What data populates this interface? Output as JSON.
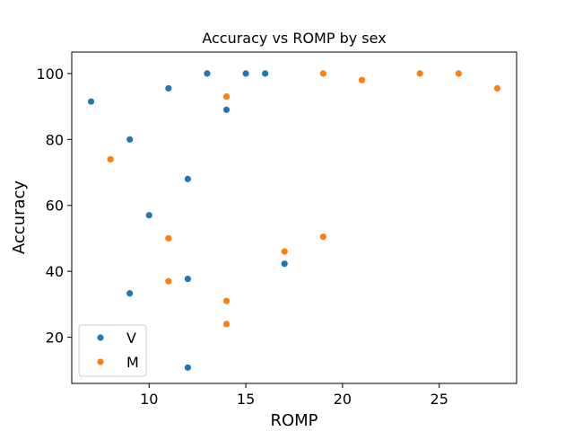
{
  "chart_data": {
    "type": "scatter",
    "title": "Accuracy vs ROMP by sex",
    "xlabel": "ROMP",
    "ylabel": "Accuracy",
    "xlim": [
      6.0,
      29.0
    ],
    "ylim": [
      6.0,
      106.5
    ],
    "xticks": [
      10,
      15,
      20,
      25
    ],
    "yticks": [
      20,
      40,
      60,
      80,
      100
    ],
    "grid": false,
    "legend_position": "lower-left",
    "series": [
      {
        "name": "V",
        "color": "#1f77b4",
        "points": [
          {
            "x": 7,
            "y": 91.5
          },
          {
            "x": 9,
            "y": 80
          },
          {
            "x": 9,
            "y": 33.3
          },
          {
            "x": 10,
            "y": 57
          },
          {
            "x": 11,
            "y": 95.5
          },
          {
            "x": 12,
            "y": 68
          },
          {
            "x": 12,
            "y": 37.7
          },
          {
            "x": 12,
            "y": 10.8
          },
          {
            "x": 13,
            "y": 100
          },
          {
            "x": 14,
            "y": 89
          },
          {
            "x": 15,
            "y": 100
          },
          {
            "x": 16,
            "y": 100
          },
          {
            "x": 17,
            "y": 42.3
          }
        ]
      },
      {
        "name": "M",
        "color": "#ff7f0e",
        "points": [
          {
            "x": 8,
            "y": 74
          },
          {
            "x": 11,
            "y": 50
          },
          {
            "x": 11,
            "y": 37
          },
          {
            "x": 14,
            "y": 93
          },
          {
            "x": 14,
            "y": 31
          },
          {
            "x": 14,
            "y": 24
          },
          {
            "x": 17,
            "y": 46
          },
          {
            "x": 19,
            "y": 100
          },
          {
            "x": 19,
            "y": 50.5
          },
          {
            "x": 21,
            "y": 98
          },
          {
            "x": 24,
            "y": 100
          },
          {
            "x": 26,
            "y": 100
          },
          {
            "x": 28,
            "y": 95.5
          }
        ]
      }
    ]
  }
}
